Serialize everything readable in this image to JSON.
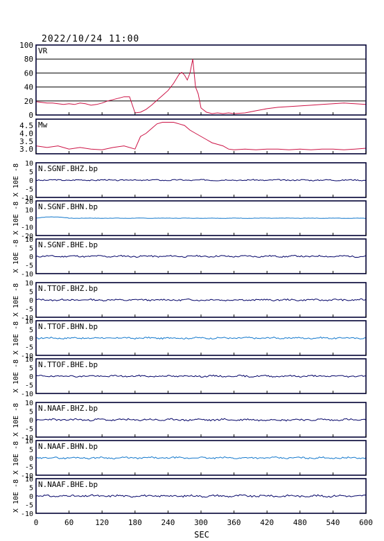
{
  "header": {
    "timestamp": "2022/10/24 11:00"
  },
  "colors": {
    "vr": "#cc1144",
    "mw": "#cc1144",
    "trace_dark": "#000066",
    "trace_light": "#1177cc",
    "frame": "#000033",
    "grid": "#000000"
  },
  "chart_data": [
    {
      "type": "line",
      "label": "VR",
      "ylim": [
        0,
        100
      ],
      "yticks": [
        "0",
        "20",
        "40",
        "60",
        "80",
        "100"
      ],
      "grid": true,
      "x": [
        0,
        10,
        20,
        30,
        40,
        50,
        60,
        70,
        80,
        90,
        100,
        110,
        120,
        130,
        140,
        150,
        160,
        170,
        180,
        190,
        200,
        210,
        220,
        230,
        240,
        250,
        260,
        265,
        270,
        275,
        280,
        285,
        290,
        295,
        300,
        310,
        320,
        330,
        340,
        350,
        360,
        380,
        400,
        420,
        440,
        460,
        480,
        500,
        520,
        540,
        560,
        580,
        600
      ],
      "y": [
        19,
        18,
        17,
        17,
        16,
        15,
        16,
        15,
        17,
        16,
        14,
        15,
        17,
        20,
        22,
        24,
        26,
        26,
        3,
        4,
        8,
        14,
        21,
        28,
        35,
        45,
        58,
        61,
        57,
        50,
        60,
        80,
        40,
        30,
        10,
        4,
        2,
        3,
        2,
        3,
        2,
        3,
        6,
        9,
        11,
        12,
        13,
        14,
        15,
        16,
        17,
        16,
        15
      ]
    },
    {
      "type": "line",
      "label": "Mw",
      "ylim": [
        2.7,
        4.9
      ],
      "yticks": [
        "3.0",
        "3.5",
        "4.0",
        "4.5"
      ],
      "grid": false,
      "x": [
        0,
        20,
        40,
        60,
        80,
        100,
        120,
        140,
        160,
        180,
        190,
        200,
        210,
        220,
        230,
        240,
        250,
        260,
        270,
        280,
        290,
        300,
        310,
        320,
        330,
        340,
        350,
        360,
        380,
        400,
        420,
        440,
        460,
        480,
        500,
        520,
        540,
        560,
        580,
        600
      ],
      "y": [
        3.2,
        3.1,
        3.2,
        3.0,
        3.1,
        3.0,
        2.95,
        3.1,
        3.2,
        3.0,
        3.8,
        4.0,
        4.3,
        4.6,
        4.7,
        4.7,
        4.7,
        4.6,
        4.5,
        4.2,
        4.0,
        3.8,
        3.6,
        3.4,
        3.3,
        3.2,
        3.0,
        2.95,
        3.0,
        2.95,
        3.0,
        3.0,
        2.95,
        3.0,
        2.95,
        3.0,
        3.0,
        2.95,
        3.0,
        3.05
      ]
    }
  ],
  "traces": [
    {
      "label": "N.SGNF.BHZ.bp",
      "color": "#000066",
      "yticks": [
        "-10",
        "-5",
        "0",
        "5",
        "10"
      ],
      "amp": 0.03,
      "seed": 3
    },
    {
      "label": "N.SGNF.BHN.bp",
      "color": "#1177cc",
      "yticks": [
        "-20",
        "-10",
        "0",
        "10",
        "20"
      ],
      "amp": 0.01,
      "seed": 7,
      "bump": 0.08
    },
    {
      "label": "N.SGNF.BHE.bp",
      "color": "#000066",
      "yticks": [
        "-10",
        "-5",
        "0",
        "5",
        "10"
      ],
      "amp": 0.04,
      "seed": 11
    },
    {
      "label": "N.TTOF.BHZ.bp",
      "color": "#000066",
      "yticks": [
        "-10",
        "-5",
        "0",
        "5",
        "10"
      ],
      "amp": 0.04,
      "seed": 13
    },
    {
      "label": "N.TTOF.BHN.bp",
      "color": "#1177cc",
      "yticks": [
        "-10",
        "-5",
        "0",
        "5",
        "10"
      ],
      "amp": 0.04,
      "seed": 17
    },
    {
      "label": "N.TTOF.BHE.bp",
      "color": "#000066",
      "yticks": [
        "-10",
        "-5",
        "0",
        "5",
        "10"
      ],
      "amp": 0.04,
      "seed": 19
    },
    {
      "label": "N.NAAF.BHZ.bp",
      "color": "#000066",
      "yticks": [
        "-10",
        "-5",
        "0",
        "5",
        "10"
      ],
      "amp": 0.05,
      "seed": 23
    },
    {
      "label": "N.NAAF.BHN.bp",
      "color": "#1177cc",
      "yticks": [
        "-10",
        "-5",
        "0",
        "5",
        "10"
      ],
      "amp": 0.04,
      "seed": 29
    },
    {
      "label": "N.NAAF.BHE.bp",
      "color": "#000066",
      "yticks": [
        "-10",
        "-5",
        "0",
        "5",
        "10"
      ],
      "amp": 0.05,
      "seed": 31
    }
  ],
  "trace_ylabel": "X 10E -8",
  "xaxis": {
    "xlim": [
      0,
      600
    ],
    "ticks": [
      0,
      60,
      120,
      180,
      240,
      300,
      360,
      420,
      480,
      540,
      600
    ],
    "label": "SEC"
  }
}
